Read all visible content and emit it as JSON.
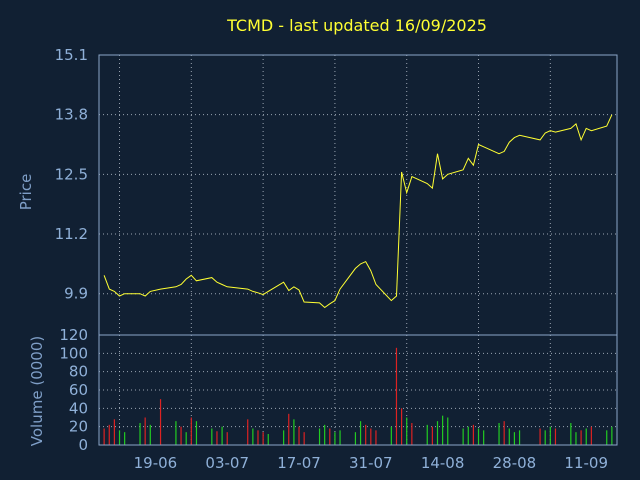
{
  "chart_data": [
    {
      "type": "line",
      "title": "TCMD - last updated 16/09/2025",
      "ylabel": "Price",
      "ylim": [
        9.0,
        15.1
      ],
      "yticks": [
        9.9,
        11.2,
        12.5,
        13.8,
        15.1
      ],
      "x": [
        "2025-06-09",
        "2025-06-10",
        "2025-06-11",
        "2025-06-12",
        "2025-06-13",
        "2025-06-16",
        "2025-06-17",
        "2025-06-18",
        "2025-06-20",
        "2025-06-23",
        "2025-06-24",
        "2025-06-25",
        "2025-06-26",
        "2025-06-27",
        "2025-06-30",
        "2025-07-01",
        "2025-07-02",
        "2025-07-03",
        "2025-07-07",
        "2025-07-08",
        "2025-07-09",
        "2025-07-10",
        "2025-07-11",
        "2025-07-14",
        "2025-07-15",
        "2025-07-16",
        "2025-07-17",
        "2025-07-18",
        "2025-07-21",
        "2025-07-22",
        "2025-07-23",
        "2025-07-24",
        "2025-07-25",
        "2025-07-28",
        "2025-07-29",
        "2025-07-30",
        "2025-07-31",
        "2025-08-01",
        "2025-08-04",
        "2025-08-05",
        "2025-08-06",
        "2025-08-07",
        "2025-08-08",
        "2025-08-11",
        "2025-08-12",
        "2025-08-13",
        "2025-08-14",
        "2025-08-15",
        "2025-08-18",
        "2025-08-19",
        "2025-08-20",
        "2025-08-21",
        "2025-08-22",
        "2025-08-25",
        "2025-08-26",
        "2025-08-27",
        "2025-08-28",
        "2025-08-29",
        "2025-09-02",
        "2025-09-03",
        "2025-09-04",
        "2025-09-05",
        "2025-09-08",
        "2025-09-09",
        "2025-09-10",
        "2025-09-11",
        "2025-09-12",
        "2025-09-15",
        "2025-09-16"
      ],
      "series": [
        {
          "values": [
            10.3,
            10.0,
            9.95,
            9.85,
            9.9,
            9.9,
            9.85,
            9.95,
            10.0,
            10.05,
            10.1,
            10.22,
            10.3,
            10.18,
            10.25,
            10.15,
            10.1,
            10.05,
            10.0,
            9.95,
            9.92,
            9.88,
            9.95,
            10.15,
            9.97,
            10.05,
            9.98,
            9.72,
            9.7,
            9.6,
            9.68,
            9.75,
            10.0,
            10.45,
            10.55,
            10.6,
            10.4,
            10.1,
            9.75,
            9.85,
            12.55,
            12.1,
            12.45,
            12.3,
            12.2,
            12.95,
            12.4,
            12.5,
            12.6,
            12.85,
            12.7,
            13.15,
            13.1,
            12.95,
            13.0,
            13.2,
            13.3,
            13.35,
            13.25,
            13.4,
            13.45,
            13.42,
            13.5,
            13.6,
            13.25,
            13.5,
            13.45,
            13.55,
            13.8
          ]
        }
      ],
      "xticks": [
        "19-06",
        "03-07",
        "17-07",
        "31-07",
        "14-08",
        "28-08",
        "11-09"
      ]
    },
    {
      "type": "bar",
      "ylabel": "Volume (0000)",
      "ylim": [
        0,
        120
      ],
      "yticks": [
        0,
        20,
        40,
        60,
        80,
        100,
        120
      ],
      "series": [
        {
          "values": [
            18,
            22,
            28,
            16,
            14,
            24,
            30,
            22,
            50,
            26,
            20,
            14,
            30,
            26,
            18,
            15,
            20,
            14,
            28,
            18,
            16,
            14,
            12,
            16,
            34,
            28,
            20,
            14,
            18,
            22,
            18,
            14,
            16,
            14,
            26,
            22,
            18,
            16,
            20,
            106,
            40,
            30,
            24,
            22,
            20,
            26,
            32,
            30,
            18,
            20,
            22,
            18,
            16,
            24,
            26,
            18,
            14,
            16,
            18,
            16,
            20,
            18,
            24,
            14,
            16,
            18,
            20,
            16,
            20
          ],
          "up": [
            false,
            false,
            false,
            true,
            true,
            true,
            false,
            true,
            false,
            true,
            false,
            true,
            false,
            true,
            true,
            false,
            true,
            false,
            false,
            true,
            false,
            false,
            true,
            true,
            false,
            true,
            false,
            false,
            true,
            true,
            false,
            true,
            true,
            true,
            true,
            false,
            false,
            false,
            true,
            false,
            false,
            true,
            false,
            true,
            false,
            true,
            true,
            true,
            true,
            true,
            false,
            true,
            true,
            true,
            false,
            true,
            true,
            true,
            false,
            true,
            true,
            false,
            true,
            true,
            false,
            true,
            false,
            true,
            true
          ]
        }
      ]
    }
  ],
  "colors": {
    "background": "#112033",
    "price_line": "#ffff33",
    "volume_up": "#22cc22",
    "volume_down": "#dd2222"
  }
}
